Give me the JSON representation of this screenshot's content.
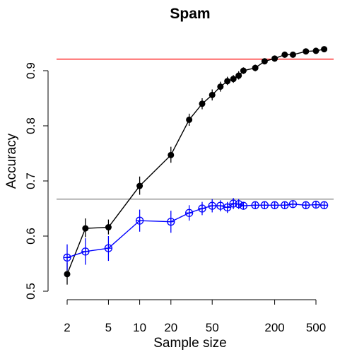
{
  "chart_data": {
    "type": "line",
    "title": "Spam",
    "xlabel": "Sample size",
    "ylabel": "Accuracy",
    "x_scale": "log",
    "xlim": [
      1.8,
      620
    ],
    "ylim": [
      0.5,
      0.95
    ],
    "x_ticks": [
      2,
      5,
      10,
      20,
      50,
      200,
      500
    ],
    "x_tick_labels": [
      "2",
      "5",
      "10",
      "20",
      "50",
      "200",
      "500"
    ],
    "y_ticks": [
      0.5,
      0.6,
      0.7,
      0.8,
      0.9
    ],
    "y_tick_labels": [
      "0.5",
      "0.6",
      "0.7",
      "0.8",
      "0.9"
    ],
    "grid": false,
    "legend": false,
    "reference_lines": [
      {
        "y": 0.921,
        "color": "#ff0000"
      },
      {
        "y": 0.667,
        "color": "#808080"
      }
    ],
    "series": [
      {
        "color": "#000000",
        "marker": "filled-circle",
        "x": [
          2,
          3,
          5,
          10,
          20,
          30,
          40,
          50,
          60,
          70,
          80,
          90,
          100,
          130,
          160,
          200,
          250,
          300,
          400,
          500,
          600
        ],
        "y": [
          0.531,
          0.614,
          0.616,
          0.691,
          0.747,
          0.811,
          0.84,
          0.856,
          0.871,
          0.881,
          0.885,
          0.891,
          0.9,
          0.905,
          0.917,
          0.922,
          0.929,
          0.929,
          0.935,
          0.936,
          0.939
        ],
        "y_low": [
          0.512,
          0.598,
          0.603,
          0.675,
          0.733,
          0.8,
          0.83,
          0.846,
          0.862,
          0.874,
          0.878,
          0.884,
          0.894,
          0.899,
          0.912,
          0.917,
          0.925,
          0.925,
          0.931,
          0.932,
          0.935
        ],
        "y_high": [
          0.552,
          0.632,
          0.63,
          0.708,
          0.762,
          0.822,
          0.85,
          0.866,
          0.88,
          0.889,
          0.892,
          0.899,
          0.906,
          0.911,
          0.922,
          0.927,
          0.933,
          0.933,
          0.939,
          0.94,
          0.943
        ]
      },
      {
        "color": "#0000ff",
        "marker": "open-circle-cross",
        "x": [
          2,
          3,
          5,
          10,
          20,
          30,
          40,
          50,
          60,
          70,
          80,
          90,
          100,
          130,
          160,
          200,
          250,
          300,
          400,
          500,
          600
        ],
        "y": [
          0.561,
          0.572,
          0.578,
          0.628,
          0.626,
          0.642,
          0.65,
          0.655,
          0.655,
          0.652,
          0.659,
          0.658,
          0.655,
          0.656,
          0.656,
          0.656,
          0.656,
          0.658,
          0.656,
          0.657,
          0.656
        ],
        "y_low": [
          0.538,
          0.548,
          0.555,
          0.608,
          0.606,
          0.628,
          0.638,
          0.643,
          0.645,
          0.642,
          0.649,
          0.649,
          0.648,
          0.65,
          0.65,
          0.65,
          0.65,
          0.652,
          0.65,
          0.651,
          0.65
        ],
        "y_high": [
          0.585,
          0.596,
          0.6,
          0.648,
          0.646,
          0.656,
          0.662,
          0.667,
          0.665,
          0.662,
          0.669,
          0.667,
          0.662,
          0.662,
          0.662,
          0.662,
          0.662,
          0.664,
          0.662,
          0.663,
          0.662
        ]
      }
    ]
  }
}
